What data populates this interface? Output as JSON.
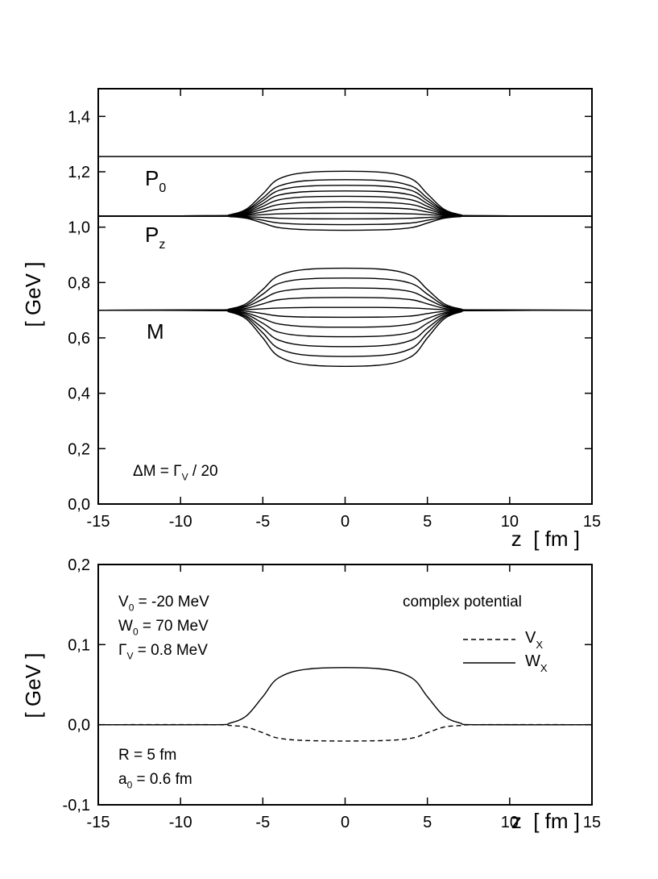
{
  "chart_data": [
    {
      "type": "line",
      "color": "#000000",
      "ylabel": "[ GeV ]",
      "xlabel": "z  [ fm ]",
      "xlim": [
        -15,
        15
      ],
      "ylim": [
        0,
        1.5
      ],
      "xticks": [
        -15,
        -10,
        -5,
        0,
        5,
        10,
        15
      ],
      "yticks": [
        {
          "value": 0,
          "label": "0,0"
        },
        {
          "value": 0.2,
          "label": "0,2"
        },
        {
          "value": 0.4,
          "label": "0,4"
        },
        {
          "value": 0.6,
          "label": "0,6"
        },
        {
          "value": 0.8,
          "label": "0,8"
        },
        {
          "value": 1.0,
          "label": "1,0"
        },
        {
          "value": 1.2,
          "label": "1,2"
        },
        {
          "value": 1.4,
          "label": "1,4"
        }
      ],
      "annotations": [
        {
          "text": "P",
          "sub": "0"
        },
        {
          "text": "P",
          "sub": "z"
        },
        {
          "text": "M"
        },
        {
          "text": "ΔM = Γ",
          "sub": "V",
          "rest": " / 20"
        }
      ],
      "x": [
        -15,
        -8,
        -7,
        -6,
        -5,
        -4,
        -2,
        2,
        4,
        5,
        6,
        7,
        8,
        15
      ],
      "series": [
        {
          "values": [
            1.255,
            1.255,
            1.255,
            1.255,
            1.255,
            1.255,
            1.255,
            1.255,
            1.255,
            1.255,
            1.255,
            1.255,
            1.255,
            1.255
          ]
        },
        {
          "values": [
            1.04,
            1.04,
            1.038,
            1.032,
            1.015,
            0.998,
            0.99,
            0.99,
            0.998,
            1.015,
            1.032,
            1.038,
            1.04,
            1.04
          ]
        },
        {
          "values": [
            1.04,
            1.04,
            1.039,
            1.035,
            1.025,
            1.015,
            1.01,
            1.01,
            1.015,
            1.025,
            1.035,
            1.039,
            1.04,
            1.04
          ]
        },
        {
          "values": [
            1.04,
            1.04,
            1.04,
            1.038,
            1.035,
            1.032,
            1.03,
            1.03,
            1.032,
            1.035,
            1.038,
            1.04,
            1.04,
            1.04
          ]
        },
        {
          "values": [
            1.04,
            1.04,
            1.04,
            1.042,
            1.045,
            1.048,
            1.05,
            1.05,
            1.048,
            1.045,
            1.042,
            1.04,
            1.04,
            1.04
          ]
        },
        {
          "values": [
            1.04,
            1.04,
            1.041,
            1.045,
            1.055,
            1.065,
            1.07,
            1.07,
            1.065,
            1.055,
            1.045,
            1.041,
            1.04,
            1.04
          ]
        },
        {
          "values": [
            1.04,
            1.04,
            1.042,
            1.048,
            1.065,
            1.082,
            1.09,
            1.09,
            1.082,
            1.065,
            1.048,
            1.042,
            1.04,
            1.04
          ]
        },
        {
          "values": [
            1.04,
            1.04,
            1.042,
            1.051,
            1.075,
            1.099,
            1.11,
            1.11,
            1.099,
            1.075,
            1.051,
            1.042,
            1.04,
            1.04
          ]
        },
        {
          "values": [
            1.04,
            1.041,
            1.043,
            1.054,
            1.085,
            1.116,
            1.129,
            1.129,
            1.116,
            1.085,
            1.054,
            1.043,
            1.041,
            1.04
          ]
        },
        {
          "values": [
            1.04,
            1.041,
            1.044,
            1.058,
            1.095,
            1.133,
            1.149,
            1.149,
            1.133,
            1.095,
            1.058,
            1.044,
            1.041,
            1.04
          ]
        },
        {
          "values": [
            1.04,
            1.041,
            1.044,
            1.061,
            1.105,
            1.149,
            1.169,
            1.169,
            1.149,
            1.105,
            1.061,
            1.044,
            1.041,
            1.04
          ]
        },
        {
          "values": [
            1.04,
            1.041,
            1.045,
            1.065,
            1.12,
            1.175,
            1.199,
            1.199,
            1.175,
            1.12,
            1.065,
            1.045,
            1.041,
            1.04
          ]
        },
        {
          "values": [
            0.7,
            0.699,
            0.693,
            0.668,
            0.6,
            0.532,
            0.501,
            0.501,
            0.532,
            0.6,
            0.668,
            0.693,
            0.699,
            0.7
          ]
        },
        {
          "values": [
            0.7,
            0.699,
            0.694,
            0.674,
            0.618,
            0.561,
            0.536,
            0.536,
            0.561,
            0.618,
            0.674,
            0.694,
            0.699,
            0.7
          ]
        },
        {
          "values": [
            0.7,
            0.699,
            0.696,
            0.679,
            0.635,
            0.591,
            0.571,
            0.571,
            0.591,
            0.635,
            0.679,
            0.696,
            0.699,
            0.7
          ]
        },
        {
          "values": [
            0.7,
            0.699,
            0.697,
            0.685,
            0.653,
            0.62,
            0.606,
            0.606,
            0.62,
            0.653,
            0.685,
            0.697,
            0.699,
            0.7
          ]
        },
        {
          "values": [
            0.7,
            0.7,
            0.698,
            0.69,
            0.67,
            0.65,
            0.64,
            0.64,
            0.65,
            0.67,
            0.69,
            0.698,
            0.7,
            0.7
          ]
        },
        {
          "values": [
            0.7,
            0.7,
            0.699,
            0.696,
            0.688,
            0.679,
            0.675,
            0.675,
            0.679,
            0.688,
            0.696,
            0.699,
            0.7,
            0.7
          ]
        },
        {
          "values": [
            0.7,
            0.7,
            0.7,
            0.702,
            0.705,
            0.708,
            0.71,
            0.71,
            0.708,
            0.705,
            0.702,
            0.7,
            0.7,
            0.7
          ]
        },
        {
          "values": [
            0.7,
            0.7,
            0.702,
            0.707,
            0.723,
            0.738,
            0.745,
            0.745,
            0.738,
            0.723,
            0.707,
            0.702,
            0.7,
            0.7
          ]
        },
        {
          "values": [
            0.7,
            0.701,
            0.703,
            0.713,
            0.74,
            0.767,
            0.779,
            0.779,
            0.767,
            0.74,
            0.713,
            0.703,
            0.701,
            0.7
          ]
        },
        {
          "values": [
            0.7,
            0.701,
            0.704,
            0.718,
            0.758,
            0.797,
            0.814,
            0.814,
            0.797,
            0.758,
            0.718,
            0.704,
            0.701,
            0.7
          ]
        },
        {
          "values": [
            0.7,
            0.701,
            0.705,
            0.724,
            0.775,
            0.826,
            0.849,
            0.849,
            0.826,
            0.775,
            0.724,
            0.705,
            0.701,
            0.7
          ]
        }
      ]
    },
    {
      "type": "line",
      "color": "#000000",
      "ylabel": "[ GeV ]",
      "xlabel": "z  [ fm ]",
      "xlim": [
        -15,
        15
      ],
      "ylim": [
        -0.1,
        0.2
      ],
      "xticks": [
        -15,
        -10,
        -5,
        0,
        5,
        10,
        15
      ],
      "yticks": [
        {
          "value": -0.1,
          "label": "-0,1"
        },
        {
          "value": 0,
          "label": "0,0"
        },
        {
          "value": 0.1,
          "label": "0,1"
        },
        {
          "value": 0.2,
          "label": "0,2"
        }
      ],
      "annotations": [
        {
          "text": "V",
          "sub": "0",
          "rest": " = -20 MeV"
        },
        {
          "text": "W",
          "sub": "0",
          "rest": " = 70 MeV"
        },
        {
          "text": "Γ",
          "sub": "V",
          "rest": " = 0.8 MeV"
        },
        {
          "text": "complex potential"
        },
        {
          "text": "R = 5 fm"
        },
        {
          "text": "a",
          "sub": "0",
          "rest": " = 0.6 fm"
        }
      ],
      "x": [
        -15,
        -8,
        -7,
        -6,
        -5,
        -4,
        -2,
        2,
        4,
        5,
        6,
        7,
        8,
        15
      ],
      "series": [
        {
          "name": "VX",
          "style": "dashed",
          "values": [
            0,
            0,
            -0.001,
            -0.003,
            -0.01,
            -0.017,
            -0.02,
            -0.02,
            -0.017,
            -0.01,
            -0.003,
            -0.001,
            0,
            0
          ]
        },
        {
          "name": "WX",
          "style": "solid",
          "values": [
            0,
            0,
            0.002,
            0.011,
            0.035,
            0.059,
            0.07,
            0.07,
            0.059,
            0.035,
            0.011,
            0.002,
            0,
            0
          ]
        }
      ]
    }
  ]
}
